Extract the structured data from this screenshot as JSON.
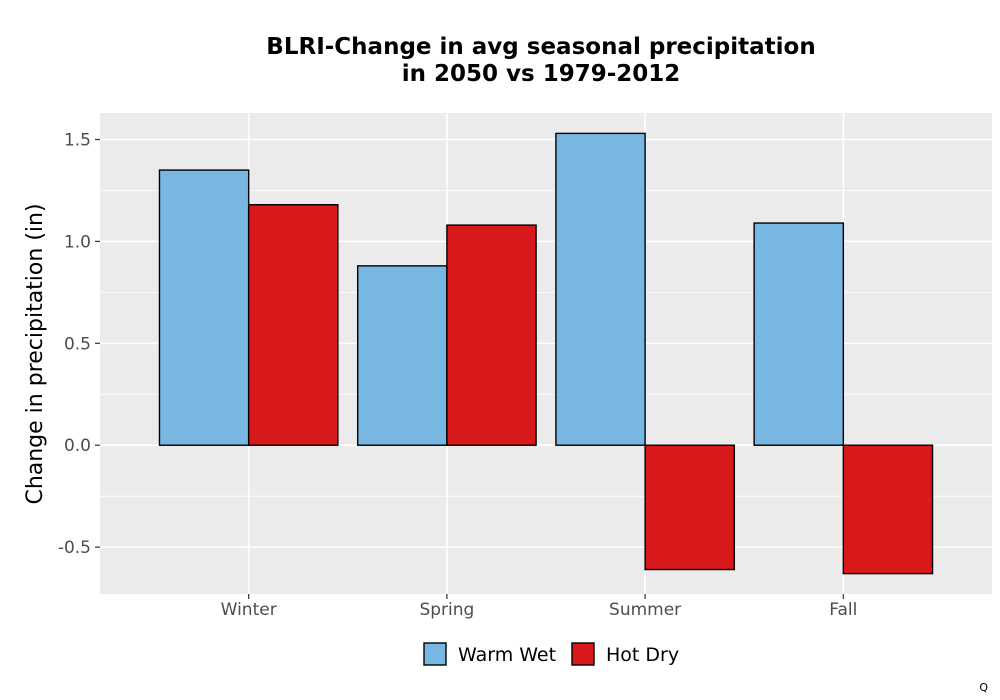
{
  "chart_data": {
    "type": "bar",
    "title_lines": [
      "BLRI-Change in avg seasonal precipitation",
      "in 2050 vs 1979-2012"
    ],
    "ylabel": "Change in precipitation (in)",
    "xlabel": "",
    "categories": [
      "Winter",
      "Spring",
      "Summer",
      "Fall"
    ],
    "series": [
      {
        "name": "Warm Wet",
        "color": "#77b7e1",
        "values": [
          1.35,
          0.88,
          1.53,
          1.09
        ]
      },
      {
        "name": "Hot Dry",
        "color": "#d7191c",
        "values": [
          1.18,
          1.08,
          -0.61,
          -0.63
        ]
      }
    ],
    "ylim": [
      -0.73,
      1.63
    ],
    "yticks": [
      -0.5,
      0.0,
      0.5,
      1.0,
      1.5
    ],
    "ytick_labels": [
      "-0.5",
      "0.0",
      "0.5",
      "1.0",
      "1.5"
    ],
    "grid": true,
    "legend_position": "bottom",
    "panel_background": "#ebebeb"
  },
  "corner_mark": "Q"
}
